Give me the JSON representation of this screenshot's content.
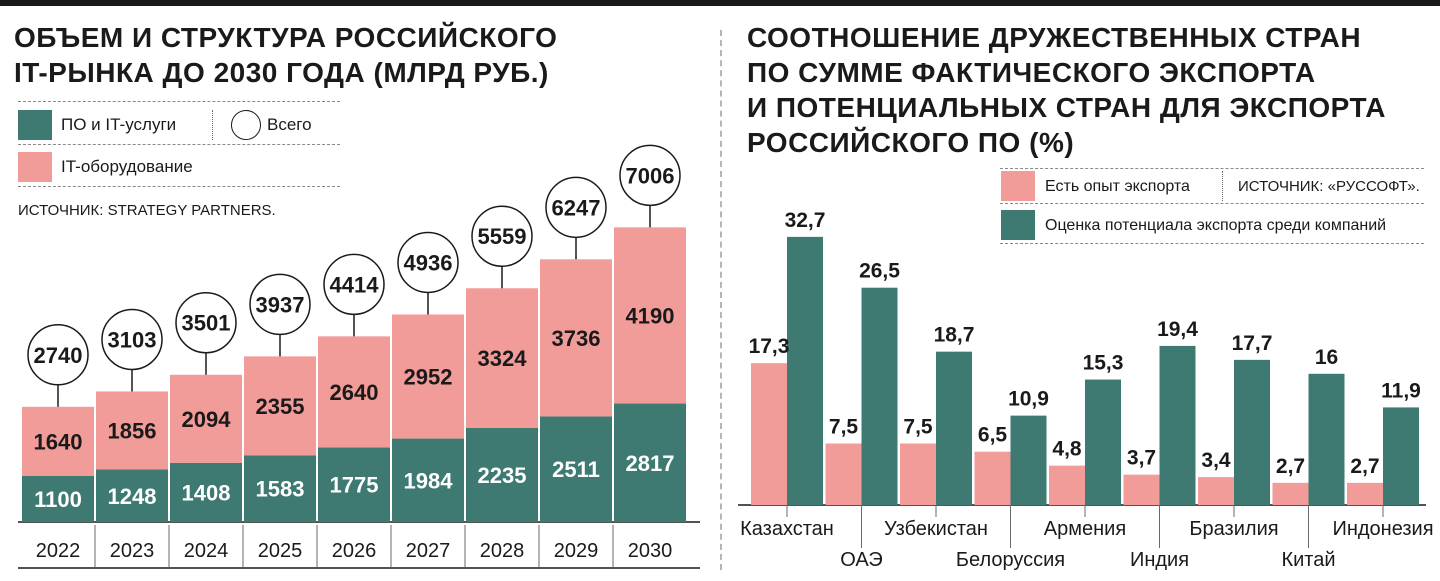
{
  "colors": {
    "teal": "#3e7a72",
    "pink": "#f19c98",
    "dark": "#1a1a1a"
  },
  "left": {
    "title_line1": "ОБЪЕМ И СТРУКТУРА РОССИЙСКОГО",
    "title_line2": "IT-РЫНКА ДО 2030 ГОДА (МЛРД РУБ.)",
    "legend": {
      "software": "ПО и IT-услуги",
      "total": "Всего",
      "hardware": "IT-оборудование"
    },
    "source": "ИСТОЧНИК: STRATEGY PARTNERS."
  },
  "right": {
    "title_line1": "СООТНОШЕНИЕ ДРУЖЕСТВЕННЫХ СТРАН",
    "title_line2": "ПО СУММЕ ФАКТИЧЕСКОГО ЭКСПОРТА",
    "title_line3": "И ПОТЕНЦИАЛЬНЫХ СТРАН ДЛЯ ЭКСПОРТА",
    "title_line4": "РОССИЙСКОГО ПО (%)",
    "legend": {
      "experience": "Есть опыт экспорта",
      "potential": "Оценка потенциала экспорта среди компаний"
    },
    "source": "ИСТОЧНИК: «РУССОФТ»."
  },
  "chart_data": [
    {
      "type": "bar",
      "stacked": true,
      "title": "ОБЪЕМ И СТРУКТУРА РОССИЙСКОГО IT-РЫНКА ДО 2030 ГОДА (МЛРД РУБ.)",
      "categories": [
        "2022",
        "2023",
        "2024",
        "2025",
        "2026",
        "2027",
        "2028",
        "2029",
        "2030"
      ],
      "series": [
        {
          "name": "ПО и IT-услуги",
          "values": [
            1100,
            1248,
            1408,
            1583,
            1775,
            1984,
            2235,
            2511,
            2817
          ]
        },
        {
          "name": "IT-оборудование",
          "values": [
            1640,
            1856,
            2094,
            2355,
            2640,
            2952,
            3324,
            3736,
            4190
          ]
        }
      ],
      "totals": {
        "name": "Всего",
        "values": [
          2740,
          3103,
          3501,
          3937,
          4414,
          4936,
          5559,
          6247,
          7006
        ]
      },
      "legend_position": "top-left",
      "grid": false
    },
    {
      "type": "bar",
      "title": "СООТНОШЕНИЕ ДРУЖЕСТВЕННЫХ СТРАН ПО СУММЕ ФАКТИЧЕСКОГО ЭКСПОРТА И ПОТЕНЦИАЛЬНЫХ СТРАН ДЛЯ ЭКСПОРТА РОССИЙСКОГО ПО (%)",
      "categories": [
        "Казахстан",
        "ОАЭ",
        "Узбекистан",
        "Белоруссия",
        "Армения",
        "Индия",
        "Бразилия",
        "Китай",
        "Индонезия"
      ],
      "series": [
        {
          "name": "Есть опыт экспорта",
          "values": [
            17.3,
            7.5,
            7.5,
            6.5,
            4.8,
            3.7,
            3.4,
            2.7,
            2.7
          ],
          "labels": [
            "17,3",
            "7,5",
            "7,5",
            "6,5",
            "4,8",
            "3,7",
            "3,4",
            "2,7",
            "2,7"
          ]
        },
        {
          "name": "Оценка потенциала экспорта среди компаний",
          "values": [
            32.7,
            26.5,
            18.7,
            10.9,
            15.3,
            19.4,
            17.7,
            16,
            11.9
          ],
          "labels": [
            "32,7",
            "26,5",
            "18,7",
            "10,9",
            "15,3",
            "19,4",
            "17,7",
            "16",
            "11,9"
          ]
        }
      ],
      "legend_position": "top-right",
      "grid": false
    }
  ]
}
